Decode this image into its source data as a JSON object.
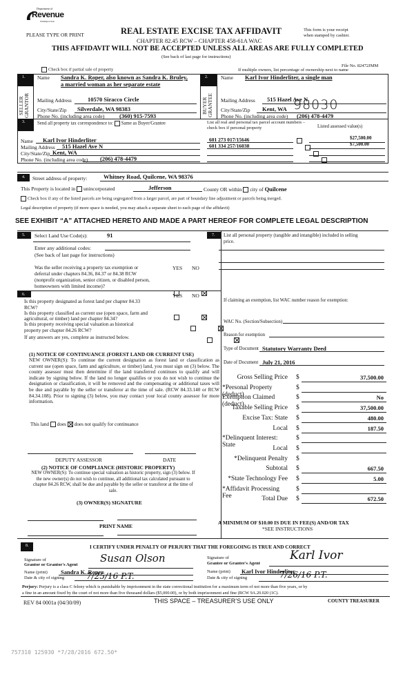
{
  "header": {
    "logo_dept": "Department of",
    "logo_word": "Revenue",
    "logo_state": "Washington State",
    "please_type": "PLEASE TYPE OR PRINT",
    "title": "REAL ESTATE EXCISE TAX AFFIDAVIT",
    "chapter": "CHAPTER 82.45 RCW – CHAPTER 458-61A WAC",
    "warning": "THIS AFFIDAVIT WILL NOT BE ACCEPTED UNLESS ALL AREAS ARE FULLY COMPLETED",
    "instructions": "(See back of last page for instructions)",
    "receipt_1": "This form is your receipt",
    "receipt_2": "when stamped by cashier.",
    "file_no": "File No. 82472JMM",
    "partial_sale": "Check box if partial sale of property",
    "multiple_owners": "If multiple owners, list percentage of ownership next to name"
  },
  "seller": {
    "num": "1.",
    "name_label": "Name",
    "name_1": "Sandra K. Roper, also known as Sandra K. Bruley,",
    "name_2": "a married woman as her separate estate",
    "side_label": "SELLER GRANTOR",
    "mailing_label": "Mailing Address",
    "mailing": "10570 Siracco Circle",
    "city_label": "City/State/Zip",
    "city": "Silverdale, WA 98383",
    "phone_label": "Phone No. (including area code)",
    "phone": "(360) 915-7593"
  },
  "buyer": {
    "num": "2.",
    "name_label": "Name",
    "name": "Karl Ivor Hinderliter, a single man",
    "side_label": "BUYER GRANTEE",
    "mailing_label": "Mailing Address",
    "mailing": "515 Hazel Ave N",
    "city_label": "City/State/Zip",
    "city": "Kent, WA",
    "zip_handwritten": "98030",
    "phone_label": "Phone No. (including area code)",
    "phone": "(206) 478-4479"
  },
  "correspondence": {
    "num": "3.",
    "label": "Send all property tax correspondence to:",
    "same_as": "Same as Buyer/Grantee",
    "name_label": "Name",
    "name": "Karl Ivor Hinderliter",
    "mailing_label": "Mailing Address",
    "mailing": "515 Hazel Ave N",
    "city_label": "City/State/Zip",
    "city": "Kent, WA",
    "phone_label": "Phone No. (including area code)",
    "phone": "(206) 478-4479",
    "parcel_header": "List all real and personal tax parcel account numbers – check box if personal property",
    "assessed_header": "Listed assessed value(s)",
    "parcels": [
      {
        "number": "601 273 017/15646",
        "value": "$27,500.00"
      },
      {
        "number": "601 334 257/16038",
        "value": "$7,500.00"
      },
      {
        "number": "",
        "value": ""
      },
      {
        "number": "",
        "value": ""
      }
    ]
  },
  "property": {
    "num": "4.",
    "street_label": "Street address of property:",
    "street": "Whitney Road, Quilcene, WA  98376",
    "located_in": "This Property is located in",
    "unincorporated": "unincorporated",
    "county": "Jefferson",
    "county_or": "County OR  within",
    "city_of": "city of",
    "city": "Quilcene",
    "segregated": "Check box if any of the listed parcels are being segregated from a larger parcel, are part of boundary line adjustment or parcels being merged.",
    "legal_label": "Legal description of property (if more space is needed, you may attach a separate sheet to each page of the affidavit)",
    "exhibit": "SEE EXHIBIT “A” ATTACHED HERETO AND MADE A PART HEREOF FOR COMPLETE LEGAL DESCRIPTION"
  },
  "land_use": {
    "num": "5.",
    "label": "Select Land Use Code(s):",
    "code": "91",
    "additional": "Enter any additional codes:",
    "see_back": "(See back of last page for instructions)",
    "yes": "YES",
    "no": "NO",
    "exemption_q": [
      "Was the seller receiving a property tax exemption or",
      "deferral under chapters 84.36, 84.37 or 84.38 RCW",
      "(nonprofit organization, senior citizen, or disabled person,",
      "homeowners with limited income)?"
    ],
    "exemption_answer": "NO"
  },
  "section6": {
    "num": "6.",
    "yes": "YES",
    "no": "NO",
    "questions": [
      {
        "l1": "Is this property designated as forest land per chapter 84.33",
        "l2": "RCW?",
        "answer": "NO"
      },
      {
        "l1": "Is this property classified as current use (open space, farm and",
        "l2": "agricultural, or timber) land per chapter 84.34?",
        "answer": "NO"
      },
      {
        "l1": "Is this property receiving special valuation as historical",
        "l2": "property per chapter 84.26 RCW?",
        "answer": "NO"
      }
    ],
    "if_yes": "If any answers are yes, complete as instructed below.",
    "notice1_title": "(1) NOTICE OF CONTINUANCE (FOREST LAND OR CURRENT USE)",
    "notice1_text": "NEW OWNER(S): To continue the current designation as forest land or classification as current use (open space, farm and agriculture, or timber) land, you must sign on (3) below. The county assessor must then determine if the land transferred continues to qualify and will indicate by signing below. If the land no longer qualifies or you do not wish to continue the designation or classification, it will be removed and the compensating or additional taxes will be due and payable by the seller or transferor at the time of sale. (RCW 84.33.140 or RCW 84.34.108). Prior to signing (3) below, you may contact your local county assessor for more information.",
    "this_land": "This land",
    "does": "does",
    "does_not": "does not  qualify for continuance",
    "continuance": "does not",
    "deputy": "DEPUTY ASSESSOR",
    "date": "DATE",
    "notice2_title": "(2) NOTICE OF COMPLIANCE (HISTORIC PROPERTY)",
    "notice2_text": "NEW OWNER(S): To continue special valuation as historic property, sign (3) below. If the new owner(s) do not wish to continue, all additional tax calculated pursuant to chapter 84.26 RCW, shall be due and payable by the seller or transferor at the time of sale.",
    "owner_sig": "(3)  OWNER(S) SIGNATURE",
    "print_name": "PRINT NAME"
  },
  "section7": {
    "num": "7.",
    "label": "List all personal property (tangible and intangible) included in selling",
    "label2": "price.",
    "exemption_label": "If claiming an exemption, list WAC number reason for exemption:",
    "wac_label": "WAC No. (Section/Subsection)",
    "reason_label": "Reason for exemption",
    "doc_type_label": "Type of Document",
    "doc_type": "Statutory Warranty Deed",
    "doc_date_label": "Date of Document",
    "doc_date": "July 21, 2016"
  },
  "financials": [
    {
      "label": "Gross Selling Price",
      "value": "37,500.00"
    },
    {
      "label": "*Personal Property (deduct)",
      "value": ""
    },
    {
      "label": "Exemption Claimed (deduct)",
      "value": "No"
    },
    {
      "label": "Taxable Selling Price",
      "value": "37,500.00"
    },
    {
      "label": "Excise Tax:  State",
      "value": "480.00"
    },
    {
      "label": "Local",
      "value": "187.50"
    },
    {
      "label": "*Delinquent Interest:  State",
      "value": ""
    },
    {
      "label": "Local",
      "value": ""
    },
    {
      "label": "*Delinquent Penalty",
      "value": ""
    },
    {
      "label": "Subtotal",
      "value": "667.50"
    },
    {
      "label": "*State Technology Fee",
      "value": "5.00"
    },
    {
      "label": "*Affidavit Processing Fee",
      "value": ""
    },
    {
      "label": "Total Due",
      "value": "672.50"
    }
  ],
  "currency": "$",
  "minimum": "A MINIMUM OF $10.00 IS DUE IN FEE(S) AND/OR TAX",
  "see_instructions": "*SEE INSTRUCTIONS",
  "section8": {
    "num": "8.",
    "certify": "I CERTIFY UNDER PENALTY OF PERJURY THAT THE FOREGOING IS TRUE AND CORRECT",
    "sig_of": "Signature of",
    "grantor_agent": "Grantor or Grantor's Agent",
    "grantee_agent": "Grantee or Grantee's Agent",
    "name_print": "Name (print)",
    "date_city": "Date & city of signing",
    "grantor_name": "Sandra K. Roper",
    "grantee_name": "Karl Ivor Hinderliter",
    "grantor_sig": "Susan Olson",
    "grantee_sig": "Karl Ivor",
    "grantor_date": "7/25/16  P.T.",
    "grantee_date": "7/26/16  P.T.",
    "perjury_label": "Perjury:",
    "perjury_text": "Perjury is a class C felony which is punishable by imprisonment in the state correctional institution for a maximum term of not more than five years, or by",
    "perjury_text2": "a fine in an amount fixed by the court of not more than five thousand dollars ($5,000.00), or by both imprisonment and fine (RCW 9A.20.020 (1C).",
    "rev": "REV 84 0001a (04/30/09)",
    "treasurer_space": "THIS SPACE – TREASURER’S USE ONLY",
    "county_treasurer": "COUNTY TREASURER"
  },
  "stamp": "757310 125930 *7/28/2016 672.50*"
}
